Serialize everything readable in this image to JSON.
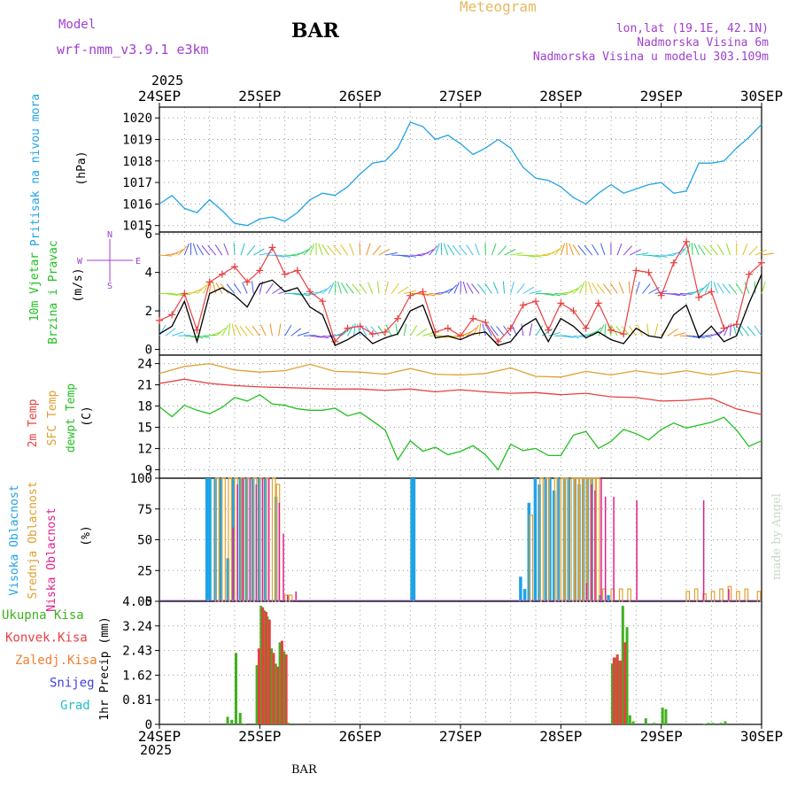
{
  "header": {
    "model_label": "Model",
    "model_version": "wrf-nmm_v3.9.1 e3km",
    "station": "BAR",
    "meteogram_label": "Meteogram",
    "coords": "lon,lat (19.1E, 42.1N)",
    "elevation": "Nadmorska Visina 6m",
    "model_elevation": "Nadmorska Visina u modelu 303.109m",
    "year_top": "2025",
    "year_bottom": "2025",
    "credit": "made by Angel",
    "footer_station": "BAR"
  },
  "colors": {
    "pressure": "#1fa3e6",
    "wind_label": "#20c020",
    "temp2m": "#e84040",
    "sfc_temp": "#e0a030",
    "dewpt": "#20c020",
    "high_cloud": "#1fa3e6",
    "mid_cloud": "#e0a030",
    "low_cloud": "#e02090",
    "rain_total": "#40b020",
    "conv_rain": "#e84040",
    "frozen_rain": "#f08030",
    "snow": "#4040e0",
    "hail": "#20c0c0",
    "compass": "#a040d0"
  },
  "chart_data": [
    {
      "id": "pressure",
      "type": "line",
      "title": "Pritisak na nivou mora",
      "ylabel": "(hPa)",
      "x_ticks": [
        "24SEP",
        "25SEP",
        "26SEP",
        "27SEP",
        "28SEP",
        "29SEP",
        "30SEP"
      ],
      "xlim": [
        0,
        144
      ],
      "ylim": [
        1014.7,
        1020.5
      ],
      "yticks": [
        1015,
        1016,
        1017,
        1018,
        1019,
        1020
      ],
      "x": [
        0,
        3,
        6,
        9,
        12,
        15,
        18,
        21,
        24,
        27,
        30,
        33,
        36,
        39,
        42,
        45,
        48,
        51,
        54,
        57,
        60,
        63,
        66,
        69,
        72,
        75,
        78,
        81,
        84,
        87,
        90,
        93,
        96,
        99,
        102,
        105,
        108,
        111,
        114,
        117,
        120,
        123,
        126,
        129,
        132,
        135,
        138,
        141,
        144
      ],
      "y": [
        1016.0,
        1016.4,
        1015.8,
        1015.6,
        1016.2,
        1015.7,
        1015.1,
        1015.0,
        1015.3,
        1015.4,
        1015.2,
        1015.6,
        1016.2,
        1016.5,
        1016.4,
        1016.8,
        1017.4,
        1017.9,
        1018.0,
        1018.6,
        1019.8,
        1019.6,
        1019.0,
        1019.2,
        1018.8,
        1018.3,
        1018.6,
        1019.0,
        1018.6,
        1017.7,
        1017.2,
        1017.1,
        1016.8,
        1016.3,
        1016.0,
        1016.5,
        1016.9,
        1016.5,
        1016.7,
        1016.9,
        1017.0,
        1016.5,
        1016.6,
        1017.9,
        1017.9,
        1018.0,
        1018.6,
        1019.1,
        1019.7
      ]
    },
    {
      "id": "wind",
      "type": "line",
      "title": "10m Vjetar",
      "subtitle": "Brzina i Pravac",
      "ylabel": "(m/s)",
      "compass": [
        "N",
        "W",
        "E",
        "S"
      ],
      "xlim": [
        0,
        144
      ],
      "ylim": [
        -0.3,
        6.1
      ],
      "yticks": [
        0,
        2,
        4,
        6
      ],
      "series": [
        {
          "name": "wind speed",
          "x": [
            0,
            3,
            6,
            9,
            12,
            15,
            18,
            21,
            24,
            27,
            30,
            33,
            36,
            39,
            42,
            45,
            48,
            51,
            54,
            57,
            60,
            63,
            66,
            69,
            72,
            75,
            78,
            81,
            84,
            87,
            90,
            93,
            96,
            99,
            102,
            105,
            108,
            111,
            114,
            117,
            120,
            123,
            126,
            129,
            132,
            135,
            138,
            141,
            144
          ],
          "values": [
            0.8,
            1.2,
            2.5,
            0.4,
            2.9,
            3.2,
            2.8,
            2.2,
            3.4,
            3.6,
            3.0,
            3.2,
            2.2,
            1.8,
            0.2,
            0.5,
            0.9,
            0.3,
            0.6,
            0.8,
            2.0,
            2.3,
            0.6,
            0.7,
            0.5,
            0.8,
            0.9,
            0.2,
            0.4,
            1.2,
            1.6,
            0.4,
            1.6,
            1.2,
            0.6,
            0.9,
            0.5,
            0.3,
            1.1,
            0.7,
            0.6,
            1.8,
            2.3,
            0.6,
            1.2,
            0.4,
            0.7,
            2.4,
            3.9
          ]
        },
        {
          "name": "wind gust",
          "x": [
            0,
            3,
            6,
            9,
            12,
            15,
            18,
            21,
            24,
            27,
            30,
            33,
            36,
            39,
            42,
            45,
            48,
            51,
            54,
            57,
            60,
            63,
            66,
            69,
            72,
            75,
            78,
            81,
            84,
            87,
            90,
            93,
            96,
            99,
            102,
            105,
            108,
            111,
            114,
            117,
            120,
            123,
            126,
            129,
            132,
            135,
            138,
            141,
            144
          ],
          "values": [
            1.5,
            1.8,
            2.9,
            1.0,
            3.5,
            3.9,
            4.3,
            3.5,
            4.1,
            5.3,
            3.9,
            4.1,
            3.0,
            2.5,
            0.4,
            1.1,
            1.2,
            0.8,
            0.9,
            1.6,
            2.8,
            3.0,
            0.9,
            1.1,
            0.7,
            1.6,
            1.4,
            0.4,
            1.1,
            2.3,
            2.5,
            1.0,
            2.4,
            2.0,
            1.1,
            2.4,
            1.0,
            0.8,
            4.1,
            4.0,
            2.8,
            4.5,
            5.6,
            2.7,
            3.0,
            1.1,
            1.3,
            3.9,
            4.5
          ]
        }
      ]
    },
    {
      "id": "temperature",
      "type": "line",
      "title": "2m Temp",
      "subtitle": "SFC Temp",
      "subtitle2": "dewpt Temp",
      "ylabel": "(C)",
      "xlim": [
        0,
        144
      ],
      "ylim": [
        7.8,
        25.2
      ],
      "yticks": [
        9,
        12,
        15,
        18,
        21,
        24
      ],
      "series": [
        {
          "name": "2m Temp",
          "x": [
            0,
            6,
            12,
            18,
            24,
            30,
            36,
            42,
            48,
            54,
            60,
            66,
            72,
            78,
            84,
            90,
            96,
            102,
            108,
            114,
            120,
            126,
            132,
            138,
            144
          ],
          "values": [
            21.2,
            21.8,
            21.2,
            20.9,
            20.7,
            20.6,
            20.5,
            20.4,
            20.4,
            20.2,
            20.4,
            20.0,
            20.3,
            20.0,
            19.8,
            19.9,
            19.6,
            19.8,
            19.3,
            19.2,
            18.7,
            18.8,
            19.1,
            17.6,
            16.8
          ]
        },
        {
          "name": "SFC Temp",
          "x": [
            0,
            6,
            12,
            18,
            24,
            30,
            36,
            42,
            48,
            54,
            60,
            66,
            72,
            78,
            84,
            90,
            96,
            102,
            108,
            114,
            120,
            126,
            132,
            138,
            144
          ],
          "values": [
            22.6,
            23.6,
            24.0,
            23.1,
            22.8,
            23.0,
            23.9,
            22.9,
            22.8,
            22.5,
            23.3,
            22.5,
            22.4,
            22.6,
            23.4,
            22.2,
            22.1,
            22.9,
            22.4,
            23.0,
            22.5,
            23.0,
            22.4,
            23.0,
            22.6
          ]
        },
        {
          "name": "dewpt Temp",
          "x": [
            0,
            3,
            6,
            9,
            12,
            15,
            18,
            21,
            24,
            27,
            30,
            33,
            36,
            39,
            42,
            45,
            48,
            51,
            54,
            57,
            60,
            63,
            66,
            69,
            72,
            75,
            78,
            81,
            84,
            87,
            90,
            93,
            96,
            99,
            102,
            105,
            108,
            111,
            114,
            117,
            120,
            123,
            126,
            129,
            132,
            135,
            138,
            141,
            144
          ],
          "values": [
            17.9,
            16.5,
            18.1,
            17.4,
            16.9,
            17.8,
            19.2,
            18.7,
            19.6,
            18.3,
            18.1,
            17.6,
            17.4,
            17.4,
            17.7,
            16.6,
            17.1,
            15.9,
            14.6,
            10.4,
            13.1,
            11.6,
            12.2,
            11.1,
            11.6,
            12.4,
            11.1,
            9.0,
            12.6,
            11.7,
            12.0,
            11.0,
            11.0,
            13.9,
            14.4,
            12.0,
            13.0,
            14.7,
            14.1,
            13.2,
            14.7,
            15.6,
            14.9,
            15.3,
            15.7,
            16.4,
            14.6,
            12.3,
            13.1
          ]
        }
      ]
    },
    {
      "id": "cloud",
      "type": "bar",
      "title": "Visoka Oblacnost",
      "subtitle": "Srednja Oblacnost",
      "subtitle2": "Niska Oblacnost",
      "ylabel": "(%)",
      "xlim": [
        0,
        144
      ],
      "ylim": [
        0,
        100
      ],
      "yticks": [
        0,
        25,
        50,
        75,
        100
      ],
      "series": [
        {
          "name": "Visoka Oblacnost",
          "x": [
            11,
            11.7,
            13,
            14.3,
            16,
            17.2,
            19,
            20.5,
            22,
            23.5,
            25,
            27.5,
            60,
            60.5,
            86,
            87,
            88,
            89.5,
            90.5,
            92,
            93,
            94,
            95,
            96.5,
            97.5,
            99,
            100,
            101,
            102,
            103,
            105,
            107
          ],
          "values": [
            100,
            100,
            100,
            100,
            35,
            100,
            100,
            100,
            100,
            100,
            100,
            85,
            100,
            100,
            20,
            10,
            80,
            100,
            95,
            100,
            100,
            90,
            100,
            100,
            100,
            100,
            95,
            100,
            100,
            100,
            5,
            5
          ]
        },
        {
          "name": "Srednja Oblacnost",
          "x": [
            13.5,
            15,
            16.5,
            18,
            19.5,
            21,
            22.5,
            24,
            25.5,
            27,
            28,
            30,
            31,
            88.5,
            91,
            92.5,
            94.5,
            96,
            97,
            98.5,
            99.5,
            100.5,
            101.5,
            102.5,
            103.5,
            104.5,
            106,
            108,
            110,
            112,
            126,
            128,
            130,
            132,
            134,
            136,
            138,
            140,
            143
          ],
          "values": [
            100,
            100,
            100,
            100,
            100,
            100,
            100,
            100,
            100,
            100,
            95,
            5,
            5,
            70,
            100,
            100,
            100,
            100,
            100,
            100,
            100,
            100,
            100,
            100,
            100,
            100,
            10,
            10,
            10,
            10,
            8,
            10,
            6,
            8,
            10,
            12,
            8,
            10,
            8
          ]
        },
        {
          "name": "Niska Oblacnost",
          "x": [
            17.5,
            18.5,
            19.8,
            21.5,
            23,
            24.5,
            26,
            28.5,
            29.5,
            30.5,
            32.5,
            102,
            103.2,
            104,
            105.5,
            106.5,
            108.5,
            114,
            130,
            136
          ],
          "values": [
            60,
            95,
            100,
            100,
            95,
            100,
            100,
            80,
            55,
            5,
            8,
            15,
            95,
            90,
            100,
            85,
            85,
            82,
            82,
            10
          ]
        }
      ]
    },
    {
      "id": "precip",
      "type": "bar",
      "title": "1hr Precip (mm)",
      "legend": [
        "Ukupna Kisa",
        "Konvek.Kisa",
        "Zaledj.Kisa",
        "Snijeg",
        "Grad"
      ],
      "xlim": [
        0,
        144
      ],
      "ylim": [
        0,
        4.05
      ],
      "yticks": [
        0,
        0.81,
        1.62,
        2.43,
        3.24,
        4.05
      ],
      "ytick_labels": [
        "0",
        "0.81",
        "1.62",
        "2.43",
        "3.24",
        "4.05"
      ],
      "series": [
        {
          "name": "Ukupna Kisa",
          "x": [
            16,
            17,
            18,
            19,
            20,
            23,
            24,
            24.8,
            25.5,
            26.5,
            27.5,
            28.5,
            29.5,
            30.5,
            108,
            108.8,
            109.5,
            110.5,
            111.5,
            112.2,
            113,
            116,
            118,
            120,
            120.8,
            130,
            131,
            132,
            134,
            135
          ],
          "values": [
            0.25,
            0.15,
            2.35,
            0.38,
            0.02,
            1.95,
            3.9,
            3.75,
            3.55,
            2.5,
            2.0,
            2.7,
            2.4,
            0.05,
            2.0,
            2.2,
            2.1,
            3.9,
            3.2,
            0.3,
            0.1,
            0.2,
            0.05,
            0.55,
            0.5,
            0.02,
            0.05,
            0.05,
            0.05,
            0.1
          ]
        },
        {
          "name": "Konvek.Kisa",
          "x": [
            23.5,
            24.4,
            25.2,
            26,
            27,
            28,
            29,
            30,
            108.4,
            109.2,
            110,
            111
          ],
          "values": [
            2.5,
            3.85,
            3.7,
            3.45,
            2.35,
            1.9,
            2.75,
            2.3,
            2.2,
            2.3,
            2.1,
            2.7
          ]
        }
      ]
    }
  ]
}
